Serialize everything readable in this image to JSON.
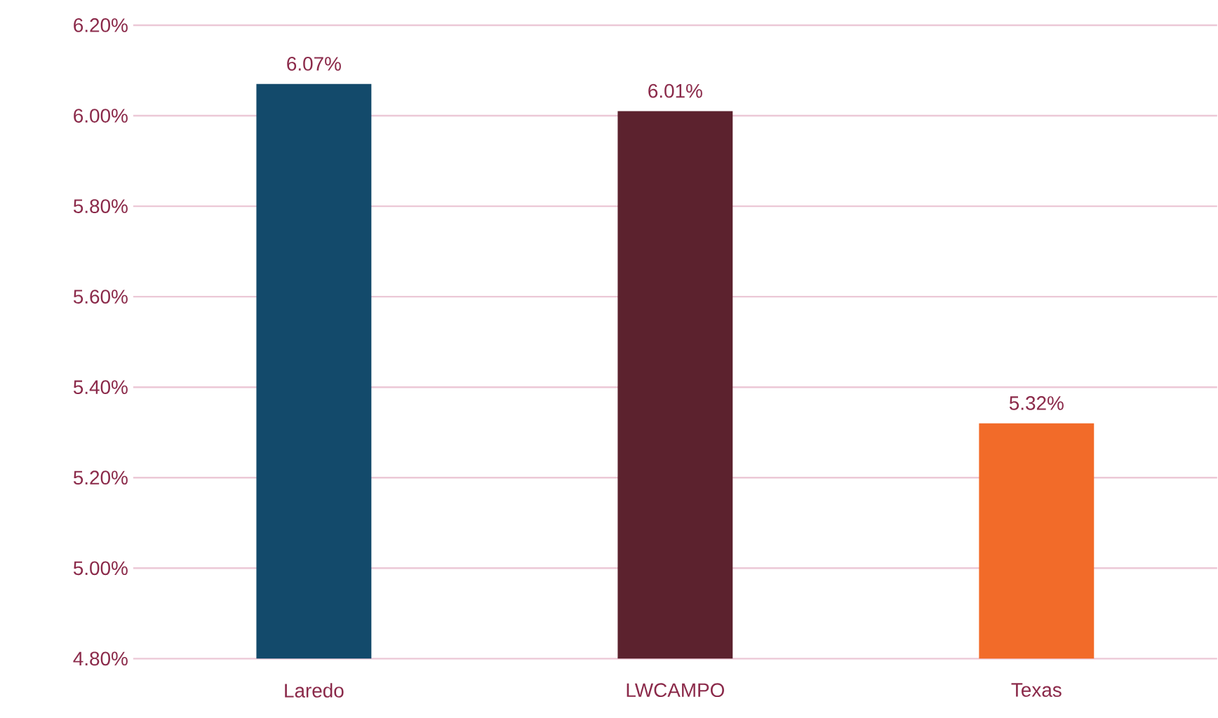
{
  "chart_data": {
    "type": "bar",
    "categories": [
      "Laredo",
      "LWCAMPO",
      "Texas"
    ],
    "values": [
      6.07,
      6.01,
      5.32
    ],
    "colors": [
      "#134a6b",
      "#5c222e",
      "#f26b29"
    ],
    "value_labels": [
      "6.07%",
      "6.01%",
      "5.32%"
    ],
    "ylim": [
      4.8,
      6.2
    ],
    "yticks": [
      {
        "value": 4.8,
        "label": "4.80%"
      },
      {
        "value": 5.0,
        "label": "5.00%"
      },
      {
        "value": 5.2,
        "label": "5.20%"
      },
      {
        "value": 5.4,
        "label": "5.40%"
      },
      {
        "value": 5.6,
        "label": "5.60%"
      },
      {
        "value": 5.8,
        "label": "5.80%"
      },
      {
        "value": 6.0,
        "label": "6.00%"
      },
      {
        "value": 6.2,
        "label": "6.20%"
      }
    ],
    "grid": "y"
  }
}
